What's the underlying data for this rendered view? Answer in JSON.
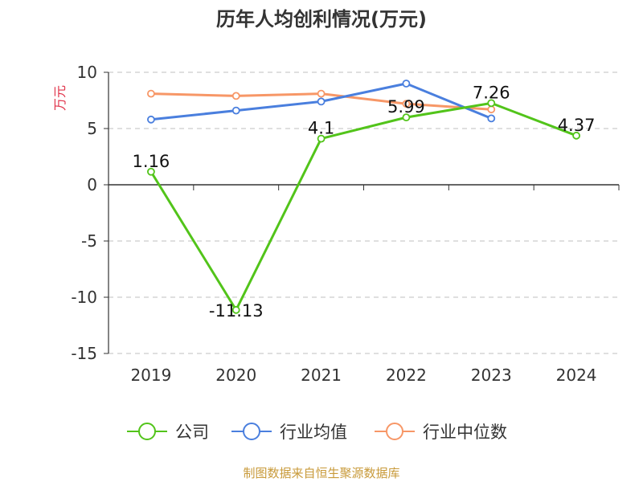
{
  "chart_data": {
    "type": "line",
    "title": "历年人均创利情况(万元)",
    "ylabel": "万元",
    "xlabel": "",
    "categories": [
      "2019",
      "2020",
      "2021",
      "2022",
      "2023",
      "2024"
    ],
    "ylim": [
      -15,
      10
    ],
    "yticks": [
      "10",
      "5",
      "0",
      "-5",
      "-10",
      "-15"
    ],
    "grid": true,
    "legend_position": "bottom",
    "series": [
      {
        "name": "公司",
        "color": "#52c41a",
        "values": [
          1.16,
          -11.13,
          4.1,
          5.99,
          7.26,
          4.37
        ],
        "labels": [
          "1.16",
          "-11.13",
          "4.1",
          "5.99",
          "7.26",
          "4.37"
        ]
      },
      {
        "name": "行业均值",
        "color": "#4a7fde",
        "values": [
          5.8,
          6.6,
          7.4,
          9.0,
          5.9,
          null
        ]
      },
      {
        "name": "行业中位数",
        "color": "#f79767",
        "values": [
          8.1,
          7.9,
          8.1,
          7.2,
          6.7,
          null
        ]
      }
    ]
  },
  "footer": {
    "source": "制图数据来自恒生聚源数据库",
    "color": "#c89a3a"
  },
  "ylabel_color": "#e0334a"
}
